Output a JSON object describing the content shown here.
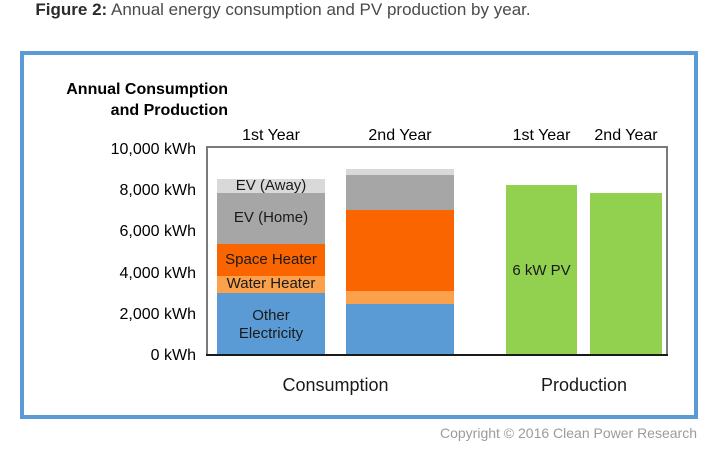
{
  "title": {
    "figure_label": "Figure 2:",
    "caption": " Annual energy consumption and PV production by year."
  },
  "axis_title": {
    "line1": "Annual Consumption",
    "line2": "and Production"
  },
  "copyright": "Copyright © 2016 Clean Power Research",
  "colors": {
    "frame_blue": "#5B9BD5",
    "panel_border": "#7A7A7A",
    "axis_black": "#1A1A1A",
    "other_electricity": "#5B9BD5",
    "water_heater": "#FBA14C",
    "space_heater": "#FB6500",
    "ev_home": "#A6A6A6",
    "ev_away": "#D9D9D9",
    "pv_green": "#92D050"
  },
  "chart_data": {
    "type": "bar",
    "stacked": true,
    "unit": "kWh",
    "ylim": [
      0,
      10000
    ],
    "grid": false,
    "yticks": [
      {
        "value": 0,
        "label": "0 kWh"
      },
      {
        "value": 2000,
        "label": "2,000 kWh"
      },
      {
        "value": 4000,
        "label": "4,000 kWh"
      },
      {
        "value": 6000,
        "label": "6,000 kWh"
      },
      {
        "value": 8000,
        "label": "8,000 kWh"
      },
      {
        "value": 10000,
        "label": "10,000 kWh"
      }
    ],
    "groups": [
      {
        "label": "Consumption",
        "bars": [
          {
            "label": "1st Year",
            "segments": [
              {
                "name": "Other Electricity",
                "value": 3050,
                "color": "#5B9BD5",
                "text_lines": [
                  "Other",
                  "Electricity"
                ]
              },
              {
                "name": "Water Heater",
                "value": 850,
                "color": "#FBA14C",
                "text_lines": [
                  "Water Heater"
                ]
              },
              {
                "name": "Space Heater",
                "value": 1550,
                "color": "#FB6500",
                "text_lines": [
                  "Space Heater"
                ]
              },
              {
                "name": "EV (Home)",
                "value": 2450,
                "color": "#A6A6A6",
                "text_lines": [
                  "EV (Home)"
                ]
              },
              {
                "name": "EV (Away)",
                "value": 700,
                "color": "#D9D9D9",
                "text_lines": [
                  "EV (Away)"
                ]
              }
            ]
          },
          {
            "label": "2nd Year",
            "segments": [
              {
                "name": "Other Electricity",
                "value": 2500,
                "color": "#5B9BD5",
                "text_lines": []
              },
              {
                "name": "Water Heater",
                "value": 650,
                "color": "#FBA14C",
                "text_lines": []
              },
              {
                "name": "Space Heater",
                "value": 3950,
                "color": "#FB6500",
                "text_lines": []
              },
              {
                "name": "EV (Home)",
                "value": 1700,
                "color": "#A6A6A6",
                "text_lines": []
              },
              {
                "name": "EV (Away)",
                "value": 300,
                "color": "#D9D9D9",
                "text_lines": []
              }
            ]
          }
        ]
      },
      {
        "label": "Production",
        "bars": [
          {
            "label": "1st Year",
            "segments": [
              {
                "name": "6 kW PV",
                "value": 8300,
                "color": "#92D050",
                "text_lines": [
                  "6 kW PV"
                ]
              }
            ]
          },
          {
            "label": "2nd Year",
            "segments": [
              {
                "name": "6 kW PV",
                "value": 7900,
                "color": "#92D050",
                "text_lines": []
              }
            ]
          }
        ]
      }
    ]
  }
}
